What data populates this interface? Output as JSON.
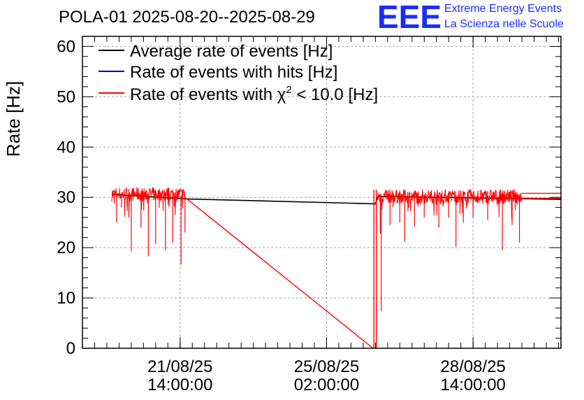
{
  "chart_data": {
    "type": "line",
    "title": "POLA-01 2025-08-20--2025-08-29",
    "ylabel": "Rate [Hz]",
    "xlabel": "",
    "ylim": [
      0,
      62
    ],
    "x_range_days": [
      0.0,
      9.8
    ],
    "yticks": [
      0,
      10,
      20,
      30,
      40,
      50,
      60
    ],
    "grid": true,
    "legend_position": "top-left",
    "xticks": [
      {
        "day": 2.0,
        "line1": "21/08/25",
        "line2": "14:00:00"
      },
      {
        "day": 5.0,
        "line1": "25/08/25",
        "line2": "02:00:00"
      },
      {
        "day": 8.0,
        "line1": "28/08/25",
        "line2": "14:00:00"
      }
    ],
    "series": [
      {
        "name": "Average rate of events [Hz]",
        "color": "#000000",
        "points": [
          [
            0.6,
            30.6
          ],
          [
            2.1,
            29.7
          ],
          [
            6.0,
            28.7
          ],
          [
            6.05,
            30.2
          ],
          [
            9.8,
            29.6
          ]
        ]
      },
      {
        "name": "Rate of events with hits [Hz]",
        "color": "#0000cc",
        "points": []
      },
      {
        "name": "Rate of events with χ² < 10.0 [Hz]",
        "legend_base": "Rate of events with χ",
        "legend_sup": "2",
        "legend_tail": " < 10.0 [Hz]",
        "color": "#ff0000",
        "noisy_segments": [
          {
            "start": 0.6,
            "end": 2.1,
            "mean": 30.6,
            "jitter": 1.4
          },
          {
            "start": 6.05,
            "end": 9.0,
            "mean": 30.2,
            "jitter": 1.4
          }
        ],
        "dips": [
          [
            0.7,
            25
          ],
          [
            0.8,
            28
          ],
          [
            0.95,
            26
          ],
          [
            1.0,
            19.3
          ],
          [
            1.2,
            24
          ],
          [
            1.35,
            18.3
          ],
          [
            1.5,
            20.8
          ],
          [
            1.7,
            19.5
          ],
          [
            1.85,
            21
          ],
          [
            2.02,
            16.7
          ],
          [
            2.1,
            23
          ],
          [
            6.1,
            22.8
          ],
          [
            6.12,
            7.4
          ],
          [
            6.3,
            24.5
          ],
          [
            6.5,
            25
          ],
          [
            6.6,
            21.2
          ],
          [
            6.8,
            24.2
          ],
          [
            7.0,
            26
          ],
          [
            7.3,
            24
          ],
          [
            7.5,
            26
          ],
          [
            7.65,
            20.2
          ],
          [
            7.8,
            25
          ],
          [
            8.0,
            26
          ],
          [
            8.3,
            25.5
          ],
          [
            8.6,
            19.5
          ],
          [
            8.8,
            24.5
          ],
          [
            8.95,
            21
          ]
        ],
        "ramp": [
          [
            2.1,
            30.0
          ],
          [
            5.95,
            0.0
          ]
        ],
        "drops": [
          [
            5.97,
            0.0
          ],
          [
            6.02,
            0.0
          ]
        ],
        "tail": [
          [
            9.0,
            30.8
          ],
          [
            9.8,
            30.8
          ],
          [
            9.0,
            29.8
          ],
          [
            9.8,
            29.8
          ]
        ]
      }
    ]
  },
  "logo": {
    "mark": "EEE",
    "line1": "Extreme Energy Events",
    "line2": "La Scienza nelle Scuole"
  }
}
